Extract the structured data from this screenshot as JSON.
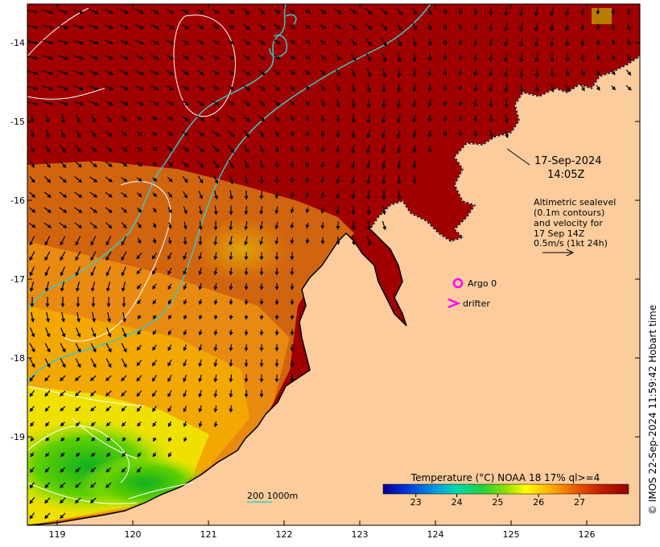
{
  "map": {
    "lat_labels": [
      "-14",
      "-15",
      "-16",
      "-17",
      "-18",
      "-19"
    ],
    "lon_labels": [
      "119",
      "120",
      "121",
      "122",
      "123",
      "124",
      "125",
      "126"
    ],
    "lat_range": [
      -20.05,
      -13.5
    ],
    "lon_range": [
      118.65,
      126.75
    ]
  },
  "annotations": {
    "date": "17-Sep-2024",
    "time": "14:05Z",
    "altimetry_lines": [
      "Altimetric sealevel",
      "(0.1m contours)",
      "and velocity for",
      "17 Sep 14Z",
      "0.5m/s (1kt 24h)"
    ],
    "argo_label": "Argo 0",
    "drifter_label": "drifter",
    "isobath_label": "200  1000m",
    "credit": "© IMOS 22-Sep-2024 11:59:42 Hobart time"
  },
  "colorbar": {
    "title": "Temperature (°C) NOAA 18 17% ql>=4",
    "ticks": [
      "23",
      "24",
      "25",
      "26",
      "27"
    ],
    "range": [
      22.2,
      28.2
    ],
    "colors": [
      "#00008c",
      "#0030d8",
      "#00a0e0",
      "#00d8b0",
      "#20d040",
      "#90e000",
      "#ffff00",
      "#ffb000",
      "#e86000",
      "#c82000",
      "#a00000",
      "#900000"
    ]
  },
  "colors": {
    "land": "#fccc9c",
    "sea_warm": "#a00000",
    "isobath": "#3cc8c8",
    "marker": "#ff00ff"
  }
}
